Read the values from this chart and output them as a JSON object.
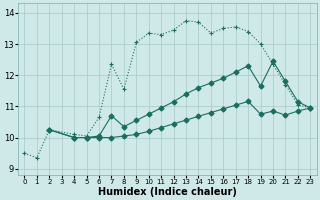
{
  "xlabel": "Humidex (Indice chaleur)",
  "background_color": "#cfe8e8",
  "grid_color": "#aecece",
  "line_color": "#1a6e60",
  "xlim": [
    -0.5,
    23.5
  ],
  "ylim": [
    8.8,
    14.3
  ],
  "xticks": [
    0,
    1,
    2,
    3,
    4,
    5,
    6,
    7,
    8,
    9,
    10,
    11,
    12,
    13,
    14,
    15,
    16,
    17,
    18,
    19,
    20,
    21,
    22,
    23
  ],
  "yticks": [
    9,
    10,
    11,
    12,
    13,
    14
  ],
  "series1_x": [
    0,
    1,
    2,
    4,
    5,
    6,
    7,
    8,
    9,
    10,
    11,
    12,
    13,
    14,
    15,
    16,
    17,
    18,
    19,
    20,
    21,
    22,
    23
  ],
  "series1_y": [
    9.5,
    9.35,
    10.25,
    10.1,
    10.05,
    10.65,
    12.35,
    11.55,
    13.05,
    13.35,
    13.3,
    13.45,
    13.75,
    13.7,
    13.35,
    13.5,
    13.55,
    13.4,
    13.0,
    12.35,
    11.7,
    11.05,
    10.95
  ],
  "series2_x": [
    2,
    4,
    5,
    6,
    7,
    8,
    9,
    10,
    11,
    12,
    13,
    14,
    15,
    16,
    17,
    18,
    19,
    20,
    21,
    22,
    23
  ],
  "series2_y": [
    10.25,
    10.0,
    10.0,
    10.05,
    10.7,
    10.35,
    10.55,
    10.75,
    10.95,
    11.15,
    11.4,
    11.6,
    11.75,
    11.9,
    12.1,
    12.3,
    11.65,
    12.45,
    11.8,
    11.15,
    10.95
  ],
  "series3_x": [
    2,
    4,
    5,
    6,
    7,
    8,
    9,
    10,
    11,
    12,
    13,
    14,
    15,
    16,
    17,
    18,
    19,
    20,
    21,
    22,
    23
  ],
  "series3_y": [
    10.25,
    10.0,
    10.0,
    10.0,
    10.0,
    10.05,
    10.1,
    10.2,
    10.32,
    10.44,
    10.56,
    10.68,
    10.8,
    10.92,
    11.04,
    11.16,
    10.75,
    10.85,
    10.72,
    10.85,
    10.95
  ]
}
